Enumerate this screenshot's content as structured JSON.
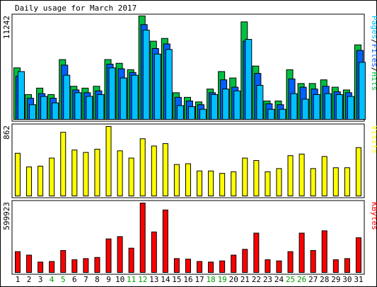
{
  "title": "Daily usage for March 2017",
  "colors": {
    "background": "#ffffff",
    "panel_bg": "#ffffff",
    "panel_border": "#000000",
    "axis_text": "#000000",
    "weekend_text": "#00a000",
    "hits": "#00c040",
    "files": "#0060ff",
    "pages": "#00c0ff",
    "visits": "#ffff00",
    "kbytes": "#ff0000"
  },
  "chart_data": [
    {
      "type": "bar",
      "name": "hits-files-pages",
      "categories": [
        "1",
        "2",
        "3",
        "4",
        "5",
        "6",
        "7",
        "8",
        "9",
        "10",
        "11",
        "12",
        "13",
        "14",
        "15",
        "16",
        "17",
        "18",
        "19",
        "20",
        "21",
        "22",
        "23",
        "24",
        "25",
        "26",
        "27",
        "28",
        "29",
        "30",
        "31"
      ],
      "weekend_days": [
        "4",
        "5",
        "11",
        "12",
        "18",
        "19",
        "25",
        "26"
      ],
      "ymax_label": "11242",
      "ylim": [
        0,
        11242
      ],
      "right_label": {
        "parts": [
          {
            "text": "Pages",
            "color_key": "pages"
          },
          {
            "text": "/",
            "color_key": "axis_text"
          },
          {
            "text": "Files",
            "color_key": "files"
          },
          {
            "text": "/",
            "color_key": "axis_text"
          },
          {
            "text": "Hits",
            "color_key": "hits"
          }
        ]
      },
      "series": [
        {
          "name": "Hits",
          "values": [
            5600,
            2700,
            3400,
            2700,
            6500,
            3600,
            3400,
            3600,
            6500,
            6100,
            5400,
            11242,
            8500,
            8800,
            2900,
            2400,
            1900,
            3300,
            5200,
            4500,
            10600,
            5800,
            2000,
            2000,
            5400,
            3900,
            3900,
            4300,
            3500,
            3200,
            8100
          ]
        },
        {
          "name": "Files",
          "values": [
            4700,
            2300,
            2800,
            2300,
            5900,
            3200,
            2900,
            3100,
            6000,
            5500,
            5100,
            10300,
            7700,
            8200,
            2400,
            2000,
            1600,
            2900,
            4300,
            3500,
            8500,
            5000,
            1700,
            1600,
            4400,
            3500,
            3300,
            3600,
            3000,
            2900,
            7500
          ]
        },
        {
          "name": "Pages",
          "values": [
            5200,
            1600,
            2500,
            1800,
            4800,
            2900,
            2500,
            2700,
            5600,
            4500,
            4800,
            9700,
            7100,
            7600,
            1500,
            1400,
            1100,
            2700,
            3300,
            3100,
            8700,
            3700,
            1100,
            1100,
            2800,
            2200,
            2700,
            2800,
            2700,
            2500,
            6200
          ]
        }
      ]
    },
    {
      "type": "bar",
      "name": "visits",
      "categories": [
        "1",
        "2",
        "3",
        "4",
        "5",
        "6",
        "7",
        "8",
        "9",
        "10",
        "11",
        "12",
        "13",
        "14",
        "15",
        "16",
        "17",
        "18",
        "19",
        "20",
        "21",
        "22",
        "23",
        "24",
        "25",
        "26",
        "27",
        "28",
        "29",
        "30",
        "31"
      ],
      "ymax_label": "862",
      "ylim": [
        0,
        862
      ],
      "right_label": {
        "parts": [
          {
            "text": "Visits",
            "color_key": "visits"
          }
        ]
      },
      "series": [
        {
          "name": "Visits",
          "values": [
            530,
            360,
            370,
            470,
            790,
            570,
            540,
            580,
            862,
            560,
            470,
            710,
            620,
            650,
            390,
            400,
            310,
            310,
            280,
            300,
            470,
            440,
            300,
            340,
            500,
            520,
            340,
            490,
            350,
            350,
            600
          ]
        }
      ]
    },
    {
      "type": "bar",
      "name": "kbytes",
      "categories": [
        "1",
        "2",
        "3",
        "4",
        "5",
        "6",
        "7",
        "8",
        "9",
        "10",
        "11",
        "12",
        "13",
        "14",
        "15",
        "16",
        "17",
        "18",
        "19",
        "20",
        "21",
        "22",
        "23",
        "24",
        "25",
        "26",
        "27",
        "28",
        "29",
        "30",
        "31"
      ],
      "ymax_label": "599923",
      "ylim": [
        0,
        599923
      ],
      "right_label": {
        "parts": [
          {
            "text": "KBytes",
            "color_key": "kbytes"
          }
        ]
      },
      "series": [
        {
          "name": "KBytes",
          "values": [
            180000,
            150000,
            90000,
            95000,
            190000,
            110000,
            120000,
            130000,
            290000,
            310000,
            210000,
            599923,
            350000,
            540000,
            120000,
            115000,
            95000,
            90000,
            100000,
            150000,
            200000,
            340000,
            110000,
            100000,
            180000,
            340000,
            190000,
            360000,
            110000,
            120000,
            300000
          ]
        }
      ]
    }
  ]
}
